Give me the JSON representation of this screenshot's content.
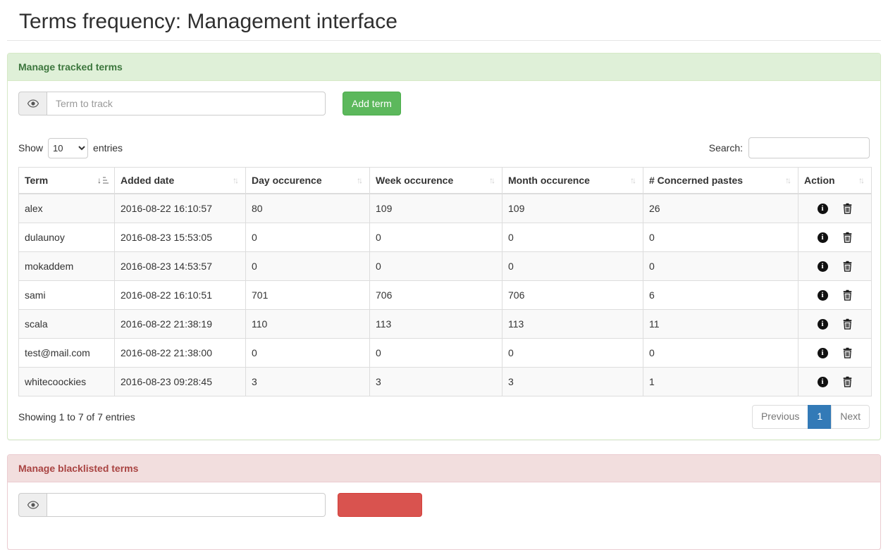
{
  "page": {
    "title": "Terms frequency: Management interface"
  },
  "colors": {
    "success_button": "#5cb85c",
    "danger_button": "#d9534f",
    "success_heading_bg": "#dff0d8",
    "success_heading_text": "#3c763d",
    "danger_heading_bg": "#f2dede",
    "danger_heading_text": "#a94442",
    "pagination_active": "#337ab7",
    "row_stripe": "#f9f9f9",
    "table_border": "#ddd"
  },
  "tracked": {
    "heading": "Manage tracked terms",
    "term_input_placeholder": "Term to track",
    "term_input_value": "",
    "add_button": "Add term",
    "show_label": "Show",
    "page_length": "10",
    "entries_label": "entries",
    "search_label": "Search:",
    "search_value": "",
    "columns": [
      "Term",
      "Added date",
      "Day occurence",
      "Week occurence",
      "Month occurence",
      "# Concerned pastes",
      "Action"
    ],
    "rows": [
      {
        "term": "alex",
        "added": "2016-08-22 16:10:57",
        "day": "80",
        "week": "109",
        "month": "109",
        "pastes": "26"
      },
      {
        "term": "dulaunoy",
        "added": "2016-08-23 15:53:05",
        "day": "0",
        "week": "0",
        "month": "0",
        "pastes": "0"
      },
      {
        "term": "mokaddem",
        "added": "2016-08-23 14:53:57",
        "day": "0",
        "week": "0",
        "month": "0",
        "pastes": "0"
      },
      {
        "term": "sami",
        "added": "2016-08-22 16:10:51",
        "day": "701",
        "week": "706",
        "month": "706",
        "pastes": "6"
      },
      {
        "term": "scala",
        "added": "2016-08-22 21:38:19",
        "day": "110",
        "week": "113",
        "month": "113",
        "pastes": "11"
      },
      {
        "term": "test@mail.com",
        "added": "2016-08-22 21:38:00",
        "day": "0",
        "week": "0",
        "month": "0",
        "pastes": "0"
      },
      {
        "term": "whitecoockies",
        "added": "2016-08-23 09:28:45",
        "day": "3",
        "week": "3",
        "month": "3",
        "pastes": "1"
      }
    ],
    "info_text": "Showing 1 to 7 of 7 entries",
    "pagination": {
      "previous": "Previous",
      "current": "1",
      "next": "Next"
    },
    "icons": {
      "addon": "eye-icon",
      "sorted_column": "sort-ascending-icon",
      "unsorted_column": "sort-icon",
      "row_actions": [
        "info-icon",
        "trash-icon"
      ]
    }
  },
  "blacklist": {
    "heading": "Manage blacklisted terms",
    "term_input_value": "",
    "term_input_placeholder": ""
  }
}
